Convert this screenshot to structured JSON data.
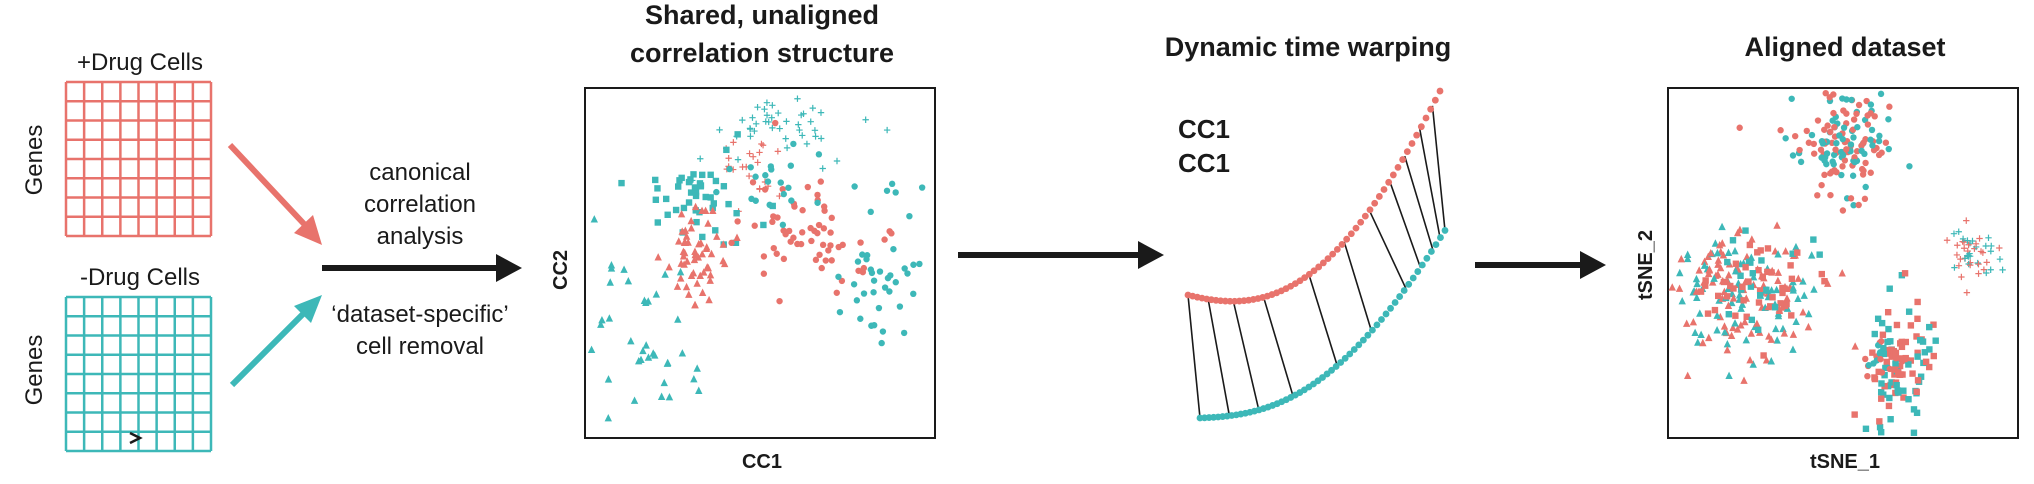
{
  "colors": {
    "red": "#E8736C",
    "teal": "#3DB8B8",
    "dark": "#1a1a1a"
  },
  "matrices": {
    "drug_plus_title": "+Drug Cells",
    "drug_minus_title": "-Drug Cells",
    "genes_label": "Genes"
  },
  "steps": {
    "cca_lines": [
      "canonical",
      "correlation",
      "analysis"
    ],
    "removal_lines": [
      "‘dataset-specific’",
      "cell removal"
    ]
  },
  "panel1": {
    "title_lines": [
      "Shared, unaligned",
      "correlation structure"
    ],
    "xlabel": "CC1",
    "ylabel": "CC2"
  },
  "panel2": {
    "title": "Dynamic time warping",
    "legend": [
      "CC1",
      "CC1"
    ]
  },
  "panel3": {
    "title": "Aligned dataset",
    "xlabel": "tSNE_1",
    "ylabel": "tSNE_2"
  }
}
